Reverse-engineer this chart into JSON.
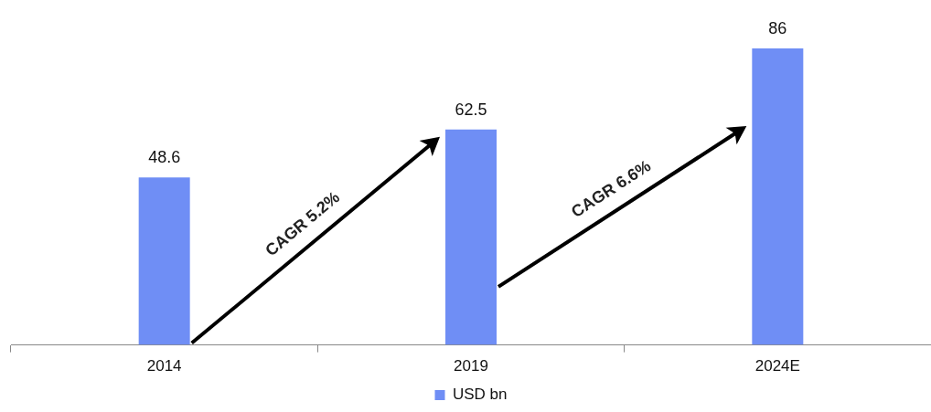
{
  "chart_data": {
    "type": "bar",
    "categories": [
      "2014",
      "2019",
      "2024E"
    ],
    "series": [
      {
        "name": "USD bn",
        "color": "#6f8ef5",
        "values": [
          48.6,
          62.5,
          86
        ]
      }
    ],
    "data_labels": true,
    "grid": false,
    "legend": "bottom",
    "annotations": [
      "CAGR 5.2%",
      "CAGR 6.6%"
    ]
  }
}
